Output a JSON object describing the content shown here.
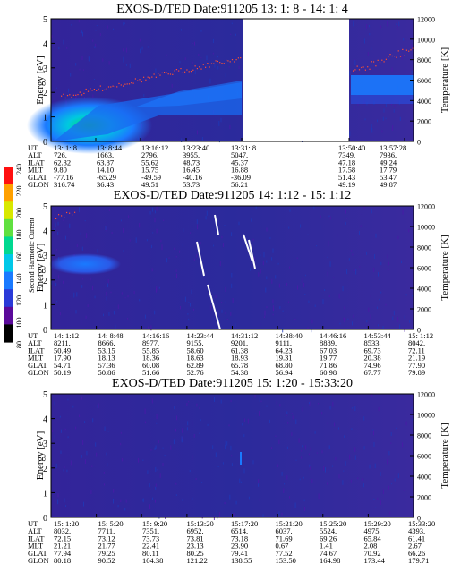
{
  "panels": [
    {
      "title": "EXOS-D/TED   Date:911205  13: 1: 8 - 14: 1: 4",
      "ylabel_left": "Energy [eV]",
      "ylabel_right": "Temperature [K]",
      "energy_ticks": [
        "0",
        "1",
        "2",
        "3",
        "4",
        "5"
      ],
      "temp_ticks": [
        "0",
        "2000",
        "4000",
        "6000",
        "8000",
        "10000",
        "12000"
      ],
      "data_gap": true,
      "ephemeris_labels": [
        "UT",
        "ALT",
        "ILAT",
        "MLT",
        "GLAT",
        "GLON"
      ],
      "ephemeris_cols": [
        [
          "13: 1: 8",
          "726.",
          "62.32",
          "9.80",
          "-77.16",
          "316.74"
        ],
        [
          "13: 8:44",
          "1663.",
          "63.87",
          "14.10",
          "-65.29",
          "36.43"
        ],
        [
          "13:16:12",
          "2796.",
          "55.62",
          "15.75",
          "-49.59",
          "49.51"
        ],
        [
          "13:23:40",
          "3955.",
          "48.73",
          "16.45",
          "-40.16",
          "53.73"
        ],
        [
          "13:31: 8",
          "5047.",
          "45.37",
          "16.88",
          "-36.09",
          "56.21"
        ],
        [
          "13:50:40",
          "7349.",
          "47.18",
          "17.58",
          "51.43",
          "49.19"
        ],
        [
          "13:57:28",
          "7936.",
          "49.24",
          "17.79",
          "53.47",
          "49.87"
        ]
      ]
    },
    {
      "title": "EXOS-D/TED   Date:911205  14: 1:12 - 15: 1:12",
      "ylabel_left": "Energy [eV]",
      "ylabel_right": "Temperature [K]",
      "energy_ticks": [
        "0",
        "1",
        "2",
        "3",
        "4",
        "5"
      ],
      "temp_ticks": [
        "0",
        "2000",
        "4000",
        "6000",
        "8000",
        "10000",
        "12000"
      ],
      "data_gap": false,
      "ephemeris_labels": [
        "UT",
        "ALT",
        "ILAT",
        "MLT",
        "GLAT",
        "GLON"
      ],
      "ephemeris_cols": [
        [
          "14: 1:12",
          "8211.",
          "50.49",
          "17.90",
          "54.71",
          "50.19"
        ],
        [
          "14: 8:48",
          "8666.",
          "53.15",
          "18.13",
          "57.36",
          "50.86"
        ],
        [
          "14:16:16",
          "8977.",
          "55.85",
          "18.36",
          "60.08",
          "51.66"
        ],
        [
          "14:23:44",
          "9155.",
          "58.60",
          "18.63",
          "62.89",
          "52.76"
        ],
        [
          "14:31:12",
          "9201.",
          "61.38",
          "18.93",
          "65.78",
          "54.38"
        ],
        [
          "14:38:40",
          "9111.",
          "64.23",
          "19.31",
          "68.80",
          "56.94"
        ],
        [
          "14:46:16",
          "8889.",
          "67.03",
          "19.77",
          "71.86",
          "60.98"
        ],
        [
          "14:53:44",
          "8533.",
          "69.73",
          "20.38",
          "74.96",
          "67.77"
        ],
        [
          "15: 1:12",
          "8042.",
          "72.11",
          "21.19",
          "77.90",
          "79.89"
        ]
      ]
    },
    {
      "title": "EXOS-D/TED   Date:911205  15: 1:20 - 15:33:20",
      "ylabel_left": "Energy [eV]",
      "ylabel_right": "Temperature [K]",
      "energy_ticks": [
        "0",
        "1",
        "2",
        "3",
        "4",
        "5"
      ],
      "temp_ticks": [
        "0",
        "2000",
        "4000",
        "6000",
        "8000",
        "10000",
        "12000"
      ],
      "data_gap": false,
      "ephemeris_labels": [
        "UT",
        "ALT",
        "ILAT",
        "MLT",
        "GLAT",
        "GLON"
      ],
      "ephemeris_cols": [
        [
          "15: 1:20",
          "8032.",
          "72.15",
          "21.21",
          "77.94",
          "80.18"
        ],
        [
          "15: 5:20",
          "7711.",
          "73.12",
          "21.77",
          "79.25",
          "90.52"
        ],
        [
          "15: 9:20",
          "7351.",
          "73.73",
          "22.41",
          "80.11",
          "104.38"
        ],
        [
          "15:13:20",
          "6952.",
          "73.81",
          "23.13",
          "80.25",
          "121.22"
        ],
        [
          "15:17:20",
          "6514.",
          "73.18",
          "23.90",
          "79.41",
          "138.55"
        ],
        [
          "15:21:20",
          "6037.",
          "71.69",
          "0.67",
          "77.52",
          "153.50"
        ],
        [
          "15:25:20",
          "5524.",
          "69.26",
          "1.41",
          "74.67",
          "164.98"
        ],
        [
          "15:29:20",
          "4975.",
          "65.84",
          "2.08",
          "70.92",
          "173.44"
        ],
        [
          "15:33:20",
          "4393.",
          "61.41",
          "2.67",
          "66.26",
          "179.71"
        ]
      ]
    }
  ],
  "colorbar": {
    "label": "Second Harmonic Current",
    "ticks": [
      "80",
      "100",
      "120",
      "140",
      "160",
      "180",
      "200",
      "220",
      "240"
    ],
    "colors": [
      "#000000",
      "#5a0a9a",
      "#2a3ad8",
      "#1a7aff",
      "#00c8e8",
      "#00d890",
      "#60e040",
      "#d8e800",
      "#ffa000",
      "#ff1010"
    ]
  }
}
